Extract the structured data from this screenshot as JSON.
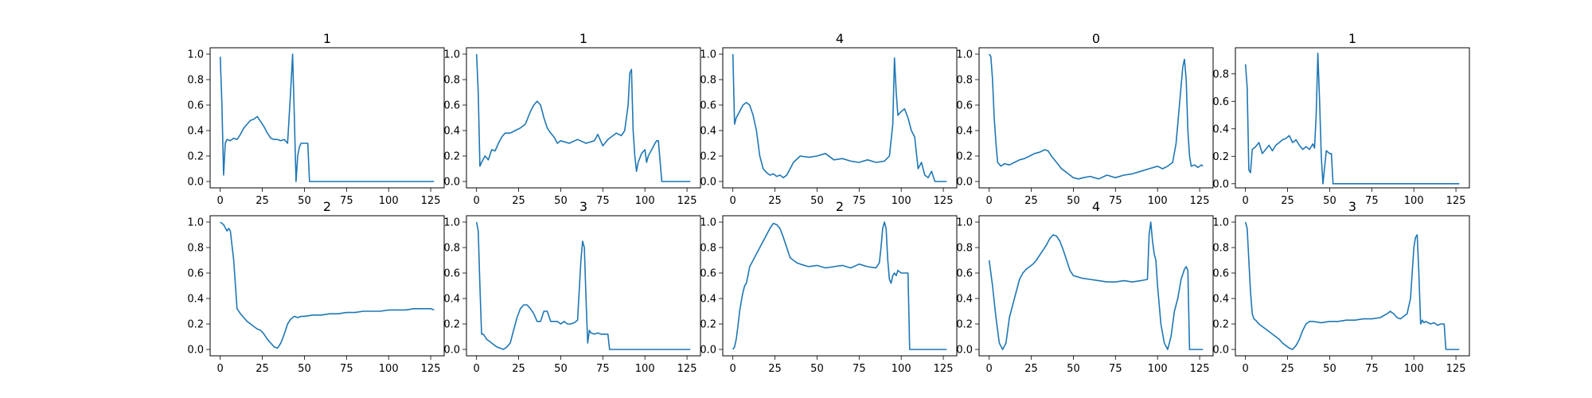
{
  "chart_data": [
    {
      "type": "line",
      "title": "1",
      "xlim": [
        -6,
        133
      ],
      "ylim": [
        -0.05,
        1.05
      ],
      "xticks": [
        0,
        25,
        50,
        75,
        100,
        125
      ],
      "yticks": [
        0.0,
        0.2,
        0.4,
        0.6,
        0.8,
        1.0
      ],
      "x": [
        0,
        1,
        2,
        3,
        4,
        6,
        8,
        10,
        12,
        14,
        16,
        18,
        20,
        22,
        24,
        26,
        28,
        30,
        32,
        34,
        36,
        38,
        40,
        42,
        43,
        44,
        45,
        46,
        47,
        48,
        50,
        52,
        53,
        54,
        60,
        70,
        80,
        90,
        100,
        110,
        120,
        127
      ],
      "y": [
        0.98,
        0.6,
        0.05,
        0.3,
        0.33,
        0.32,
        0.34,
        0.33,
        0.37,
        0.42,
        0.45,
        0.48,
        0.49,
        0.51,
        0.47,
        0.43,
        0.38,
        0.34,
        0.33,
        0.33,
        0.32,
        0.33,
        0.3,
        0.75,
        1.0,
        0.5,
        0.0,
        0.2,
        0.27,
        0.3,
        0.3,
        0.3,
        0.0,
        0.0,
        0.0,
        0.0,
        0.0,
        0.0,
        0.0,
        0.0,
        0.0,
        0.0
      ]
    },
    {
      "type": "line",
      "title": "1",
      "xlim": [
        -6,
        133
      ],
      "ylim": [
        -0.05,
        1.05
      ],
      "xticks": [
        0,
        25,
        50,
        75,
        100,
        125
      ],
      "yticks": [
        0.0,
        0.2,
        0.4,
        0.6,
        0.8,
        1.0
      ],
      "x": [
        0,
        1,
        2,
        3,
        5,
        7,
        9,
        11,
        13,
        15,
        17,
        20,
        23,
        26,
        29,
        32,
        34,
        36,
        38,
        40,
        42,
        44,
        46,
        48,
        50,
        55,
        60,
        65,
        70,
        72,
        75,
        78,
        80,
        83,
        86,
        88,
        90,
        91,
        92,
        93,
        94,
        95,
        96,
        98,
        100,
        101,
        102,
        104,
        106,
        107,
        108,
        110,
        115,
        120,
        127
      ],
      "y": [
        1.0,
        0.7,
        0.12,
        0.15,
        0.2,
        0.17,
        0.25,
        0.24,
        0.3,
        0.35,
        0.38,
        0.38,
        0.4,
        0.42,
        0.45,
        0.55,
        0.6,
        0.63,
        0.6,
        0.5,
        0.42,
        0.38,
        0.35,
        0.3,
        0.32,
        0.3,
        0.33,
        0.3,
        0.32,
        0.37,
        0.28,
        0.33,
        0.35,
        0.38,
        0.36,
        0.4,
        0.6,
        0.85,
        0.88,
        0.4,
        0.2,
        0.08,
        0.15,
        0.22,
        0.25,
        0.15,
        0.2,
        0.25,
        0.3,
        0.32,
        0.32,
        0.0,
        0.0,
        0.0,
        0.0
      ]
    },
    {
      "type": "line",
      "title": "4",
      "xlim": [
        -6,
        133
      ],
      "ylim": [
        -0.05,
        1.05
      ],
      "xticks": [
        0,
        25,
        50,
        75,
        100,
        125
      ],
      "yticks": [
        0.0,
        0.2,
        0.4,
        0.6,
        0.8,
        1.0
      ],
      "x": [
        0,
        1,
        2,
        4,
        6,
        8,
        10,
        12,
        14,
        16,
        18,
        20,
        22,
        24,
        26,
        28,
        30,
        32,
        34,
        36,
        40,
        45,
        50,
        55,
        60,
        65,
        70,
        75,
        80,
        85,
        90,
        93,
        95,
        96,
        97,
        98,
        100,
        102,
        104,
        106,
        108,
        110,
        112,
        114,
        116,
        118,
        120,
        125,
        127
      ],
      "y": [
        1.0,
        0.45,
        0.5,
        0.55,
        0.6,
        0.62,
        0.6,
        0.52,
        0.4,
        0.2,
        0.1,
        0.07,
        0.05,
        0.06,
        0.04,
        0.05,
        0.03,
        0.05,
        0.1,
        0.15,
        0.2,
        0.19,
        0.2,
        0.22,
        0.17,
        0.18,
        0.16,
        0.15,
        0.17,
        0.15,
        0.16,
        0.2,
        0.45,
        0.97,
        0.7,
        0.52,
        0.55,
        0.57,
        0.5,
        0.4,
        0.35,
        0.1,
        0.15,
        0.05,
        0.03,
        0.08,
        0.0,
        0.0,
        0.0
      ]
    },
    {
      "type": "line",
      "title": "0",
      "xlim": [
        -6,
        133
      ],
      "ylim": [
        -0.05,
        1.05
      ],
      "xticks": [
        0,
        25,
        50,
        75,
        100,
        125
      ],
      "yticks": [
        0.0,
        0.2,
        0.4,
        0.6,
        0.8,
        1.0
      ],
      "x": [
        0,
        1,
        2,
        3,
        4,
        5,
        7,
        9,
        12,
        15,
        18,
        21,
        24,
        27,
        30,
        33,
        35,
        37,
        40,
        43,
        45,
        48,
        50,
        53,
        56,
        60,
        65,
        70,
        75,
        80,
        85,
        90,
        95,
        100,
        103,
        106,
        109,
        111,
        113,
        115,
        116,
        117,
        118,
        119,
        120,
        122,
        124,
        126,
        127
      ],
      "y": [
        1.0,
        0.98,
        0.8,
        0.5,
        0.3,
        0.15,
        0.12,
        0.14,
        0.13,
        0.15,
        0.17,
        0.18,
        0.2,
        0.22,
        0.23,
        0.25,
        0.24,
        0.2,
        0.15,
        0.1,
        0.08,
        0.05,
        0.03,
        0.02,
        0.03,
        0.04,
        0.02,
        0.05,
        0.03,
        0.05,
        0.06,
        0.08,
        0.1,
        0.12,
        0.1,
        0.12,
        0.15,
        0.3,
        0.6,
        0.9,
        0.96,
        0.8,
        0.4,
        0.2,
        0.12,
        0.13,
        0.11,
        0.13,
        0.12
      ]
    },
    {
      "type": "line",
      "title": "1",
      "xlim": [
        -6,
        133
      ],
      "ylim": [
        -0.03,
        0.99
      ],
      "xticks": [
        0,
        25,
        50,
        75,
        100,
        125
      ],
      "yticks": [
        0.0,
        0.2,
        0.4,
        0.6,
        0.8
      ],
      "x": [
        0,
        1,
        2,
        3,
        4,
        6,
        8,
        10,
        12,
        14,
        16,
        18,
        20,
        22,
        24,
        26,
        28,
        30,
        32,
        34,
        36,
        38,
        40,
        41,
        42,
        43,
        44,
        45,
        46,
        48,
        50,
        51,
        52,
        53,
        55,
        60,
        70,
        80,
        90,
        100,
        110,
        120,
        127
      ],
      "y": [
        0.87,
        0.7,
        0.1,
        0.08,
        0.25,
        0.27,
        0.3,
        0.22,
        0.25,
        0.28,
        0.24,
        0.28,
        0.3,
        0.32,
        0.33,
        0.35,
        0.3,
        0.32,
        0.28,
        0.25,
        0.27,
        0.25,
        0.29,
        0.26,
        0.5,
        0.95,
        0.6,
        0.2,
        0.0,
        0.24,
        0.22,
        0.22,
        0.0,
        0.0,
        0.0,
        0.0,
        0.0,
        0.0,
        0.0,
        0.0,
        0.0,
        0.0,
        0.0
      ]
    },
    {
      "type": "line",
      "title": "2",
      "xlim": [
        -6,
        133
      ],
      "ylim": [
        -0.05,
        1.05
      ],
      "xticks": [
        0,
        25,
        50,
        75,
        100,
        125
      ],
      "yticks": [
        0.0,
        0.2,
        0.4,
        0.6,
        0.8,
        1.0
      ],
      "x": [
        0,
        2,
        4,
        5,
        6,
        8,
        10,
        12,
        14,
        16,
        18,
        20,
        22,
        24,
        26,
        28,
        30,
        32,
        34,
        36,
        38,
        40,
        42,
        44,
        46,
        48,
        50,
        55,
        60,
        65,
        70,
        75,
        80,
        85,
        90,
        95,
        100,
        105,
        110,
        115,
        120,
        125,
        127
      ],
      "y": [
        1.0,
        0.98,
        0.93,
        0.95,
        0.93,
        0.7,
        0.32,
        0.28,
        0.25,
        0.22,
        0.2,
        0.18,
        0.16,
        0.15,
        0.12,
        0.08,
        0.05,
        0.02,
        0.01,
        0.05,
        0.12,
        0.2,
        0.24,
        0.26,
        0.25,
        0.26,
        0.26,
        0.27,
        0.27,
        0.28,
        0.28,
        0.29,
        0.29,
        0.3,
        0.3,
        0.3,
        0.31,
        0.31,
        0.31,
        0.32,
        0.32,
        0.32,
        0.31
      ]
    },
    {
      "type": "line",
      "title": "3",
      "xlim": [
        -6,
        133
      ],
      "ylim": [
        -0.05,
        1.05
      ],
      "xticks": [
        0,
        25,
        50,
        75,
        100,
        125
      ],
      "yticks": [
        0.0,
        0.2,
        0.4,
        0.6,
        0.8,
        1.0
      ],
      "x": [
        0,
        1,
        2,
        3,
        4,
        6,
        8,
        10,
        12,
        14,
        16,
        18,
        20,
        22,
        24,
        26,
        28,
        30,
        32,
        34,
        36,
        38,
        40,
        42,
        44,
        46,
        48,
        50,
        52,
        54,
        56,
        58,
        60,
        62,
        63,
        64,
        65,
        66,
        67,
        68,
        70,
        72,
        74,
        76,
        78,
        79,
        80,
        90,
        100,
        110,
        120,
        127
      ],
      "y": [
        1.0,
        0.93,
        0.5,
        0.12,
        0.12,
        0.08,
        0.06,
        0.04,
        0.02,
        0.01,
        0.0,
        0.02,
        0.05,
        0.15,
        0.25,
        0.32,
        0.35,
        0.35,
        0.32,
        0.28,
        0.22,
        0.22,
        0.3,
        0.3,
        0.22,
        0.22,
        0.22,
        0.2,
        0.22,
        0.2,
        0.2,
        0.21,
        0.23,
        0.7,
        0.85,
        0.8,
        0.4,
        0.05,
        0.15,
        0.13,
        0.12,
        0.13,
        0.12,
        0.12,
        0.12,
        0.0,
        0.0,
        0.0,
        0.0,
        0.0,
        0.0,
        0.0
      ]
    },
    {
      "type": "line",
      "title": "2",
      "xlim": [
        -6,
        133
      ],
      "ylim": [
        -0.05,
        1.05
      ],
      "xticks": [
        0,
        25,
        50,
        75,
        100,
        125
      ],
      "yticks": [
        0.0,
        0.2,
        0.4,
        0.6,
        0.8,
        1.0
      ],
      "x": [
        0,
        1,
        2,
        3,
        4,
        5,
        6,
        7,
        8,
        9,
        10,
        12,
        14,
        16,
        18,
        20,
        22,
        24,
        26,
        28,
        30,
        32,
        34,
        36,
        38,
        40,
        45,
        50,
        55,
        60,
        65,
        70,
        75,
        80,
        85,
        87,
        88,
        89,
        90,
        91,
        92,
        93,
        94,
        95,
        96,
        97,
        98,
        100,
        102,
        104,
        105,
        110,
        115,
        120,
        125,
        127
      ],
      "y": [
        0.0,
        0.02,
        0.08,
        0.18,
        0.3,
        0.38,
        0.45,
        0.5,
        0.52,
        0.58,
        0.65,
        0.7,
        0.75,
        0.8,
        0.85,
        0.9,
        0.95,
        0.99,
        0.98,
        0.95,
        0.88,
        0.8,
        0.72,
        0.7,
        0.68,
        0.67,
        0.65,
        0.66,
        0.64,
        0.65,
        0.66,
        0.64,
        0.67,
        0.65,
        0.64,
        0.68,
        0.8,
        0.95,
        1.0,
        0.95,
        0.7,
        0.55,
        0.52,
        0.58,
        0.6,
        0.58,
        0.62,
        0.6,
        0.6,
        0.6,
        0.0,
        0.0,
        0.0,
        0.0,
        0.0,
        0.0
      ]
    },
    {
      "type": "line",
      "title": "4",
      "xlim": [
        -6,
        133
      ],
      "ylim": [
        -0.05,
        1.05
      ],
      "xticks": [
        0,
        25,
        50,
        75,
        100,
        125
      ],
      "yticks": [
        0.0,
        0.2,
        0.4,
        0.6,
        0.8,
        1.0
      ],
      "x": [
        0,
        2,
        4,
        6,
        8,
        10,
        12,
        14,
        16,
        18,
        20,
        22,
        24,
        26,
        28,
        30,
        32,
        34,
        36,
        38,
        40,
        42,
        44,
        46,
        48,
        50,
        55,
        60,
        65,
        70,
        75,
        80,
        85,
        90,
        94,
        95,
        96,
        97,
        98,
        99,
        100,
        102,
        104,
        106,
        108,
        110,
        112,
        114,
        116,
        117,
        118,
        119,
        120,
        122,
        125,
        127
      ],
      "y": [
        0.7,
        0.5,
        0.25,
        0.05,
        0.0,
        0.05,
        0.25,
        0.35,
        0.45,
        0.55,
        0.6,
        0.63,
        0.65,
        0.67,
        0.7,
        0.74,
        0.78,
        0.82,
        0.87,
        0.9,
        0.89,
        0.85,
        0.78,
        0.7,
        0.62,
        0.58,
        0.56,
        0.55,
        0.54,
        0.53,
        0.53,
        0.54,
        0.53,
        0.54,
        0.55,
        0.9,
        1.0,
        0.85,
        0.75,
        0.7,
        0.5,
        0.2,
        0.05,
        0.0,
        0.1,
        0.3,
        0.4,
        0.55,
        0.63,
        0.65,
        0.62,
        0.0,
        0.0,
        0.0,
        0.0,
        0.0
      ]
    },
    {
      "type": "line",
      "title": "3",
      "xlim": [
        -6,
        133
      ],
      "ylim": [
        -0.05,
        1.05
      ],
      "xticks": [
        0,
        25,
        50,
        75,
        100,
        125
      ],
      "yticks": [
        0.0,
        0.2,
        0.4,
        0.6,
        0.8,
        1.0
      ],
      "x": [
        0,
        1,
        2,
        3,
        4,
        5,
        6,
        8,
        10,
        12,
        14,
        16,
        18,
        20,
        22,
        24,
        26,
        28,
        30,
        32,
        34,
        36,
        38,
        40,
        45,
        50,
        55,
        60,
        65,
        70,
        75,
        80,
        84,
        86,
        88,
        90,
        92,
        94,
        96,
        98,
        99,
        100,
        101,
        102,
        103,
        104,
        105,
        106,
        107,
        110,
        112,
        114,
        116,
        118,
        119,
        120,
        125,
        127
      ],
      "y": [
        1.0,
        0.95,
        0.7,
        0.45,
        0.28,
        0.24,
        0.23,
        0.2,
        0.18,
        0.16,
        0.14,
        0.12,
        0.1,
        0.08,
        0.05,
        0.03,
        0.01,
        0.0,
        0.03,
        0.08,
        0.15,
        0.2,
        0.22,
        0.22,
        0.21,
        0.22,
        0.22,
        0.23,
        0.23,
        0.24,
        0.24,
        0.25,
        0.28,
        0.3,
        0.28,
        0.25,
        0.24,
        0.26,
        0.28,
        0.4,
        0.6,
        0.8,
        0.88,
        0.9,
        0.6,
        0.2,
        0.23,
        0.21,
        0.22,
        0.2,
        0.21,
        0.19,
        0.2,
        0.2,
        0.0,
        0.0,
        0.0,
        0.0
      ]
    }
  ]
}
